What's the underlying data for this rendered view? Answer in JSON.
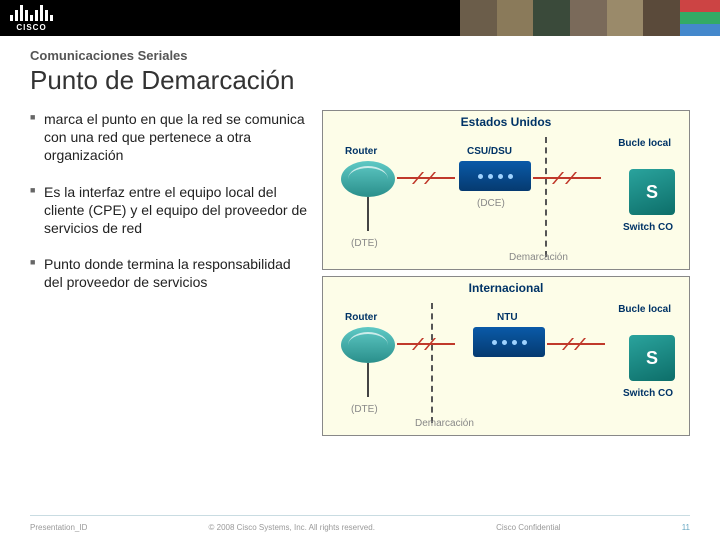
{
  "header": {
    "brand": "CISCO"
  },
  "kicker": "Comunicaciones Seriales",
  "title": "Punto de Demarcación",
  "bullets": [
    "marca el punto en que la red se comunica con una red que pertenece a otra organización",
    "Es la interfaz entre el equipo local del cliente (CPE) y el equipo del proveedor de servicios de red",
    "Punto donde termina la responsabilidad del proveedor de servicios"
  ],
  "diagram_us": {
    "title": "Estados Unidos",
    "router": "Router",
    "csu": "CSU/DSU",
    "switch": "Switch CO",
    "dte": "(DTE)",
    "dce": "(DCE)",
    "loop": "Bucle local",
    "demarc": "Demarcación",
    "s": "S"
  },
  "diagram_intl": {
    "title": "Internacional",
    "router": "Router",
    "ntu": "NTU",
    "switch": "Switch CO",
    "dte": "(DTE)",
    "loop": "Bucle local",
    "demarc": "Demarcación",
    "s": "S"
  },
  "footer": {
    "left": "Presentation_ID",
    "center": "© 2008 Cisco Systems, Inc. All rights reserved.",
    "right_label": "Cisco Confidential",
    "page": "11"
  },
  "colors": {
    "photos": [
      "#6b5d4a",
      "#8a7a5a",
      "#3a4a3a",
      "#7a6a5a",
      "#9a8a6a",
      "#5a4a3a"
    ],
    "deco": [
      "#c44",
      "#3a6",
      "#48c"
    ]
  }
}
